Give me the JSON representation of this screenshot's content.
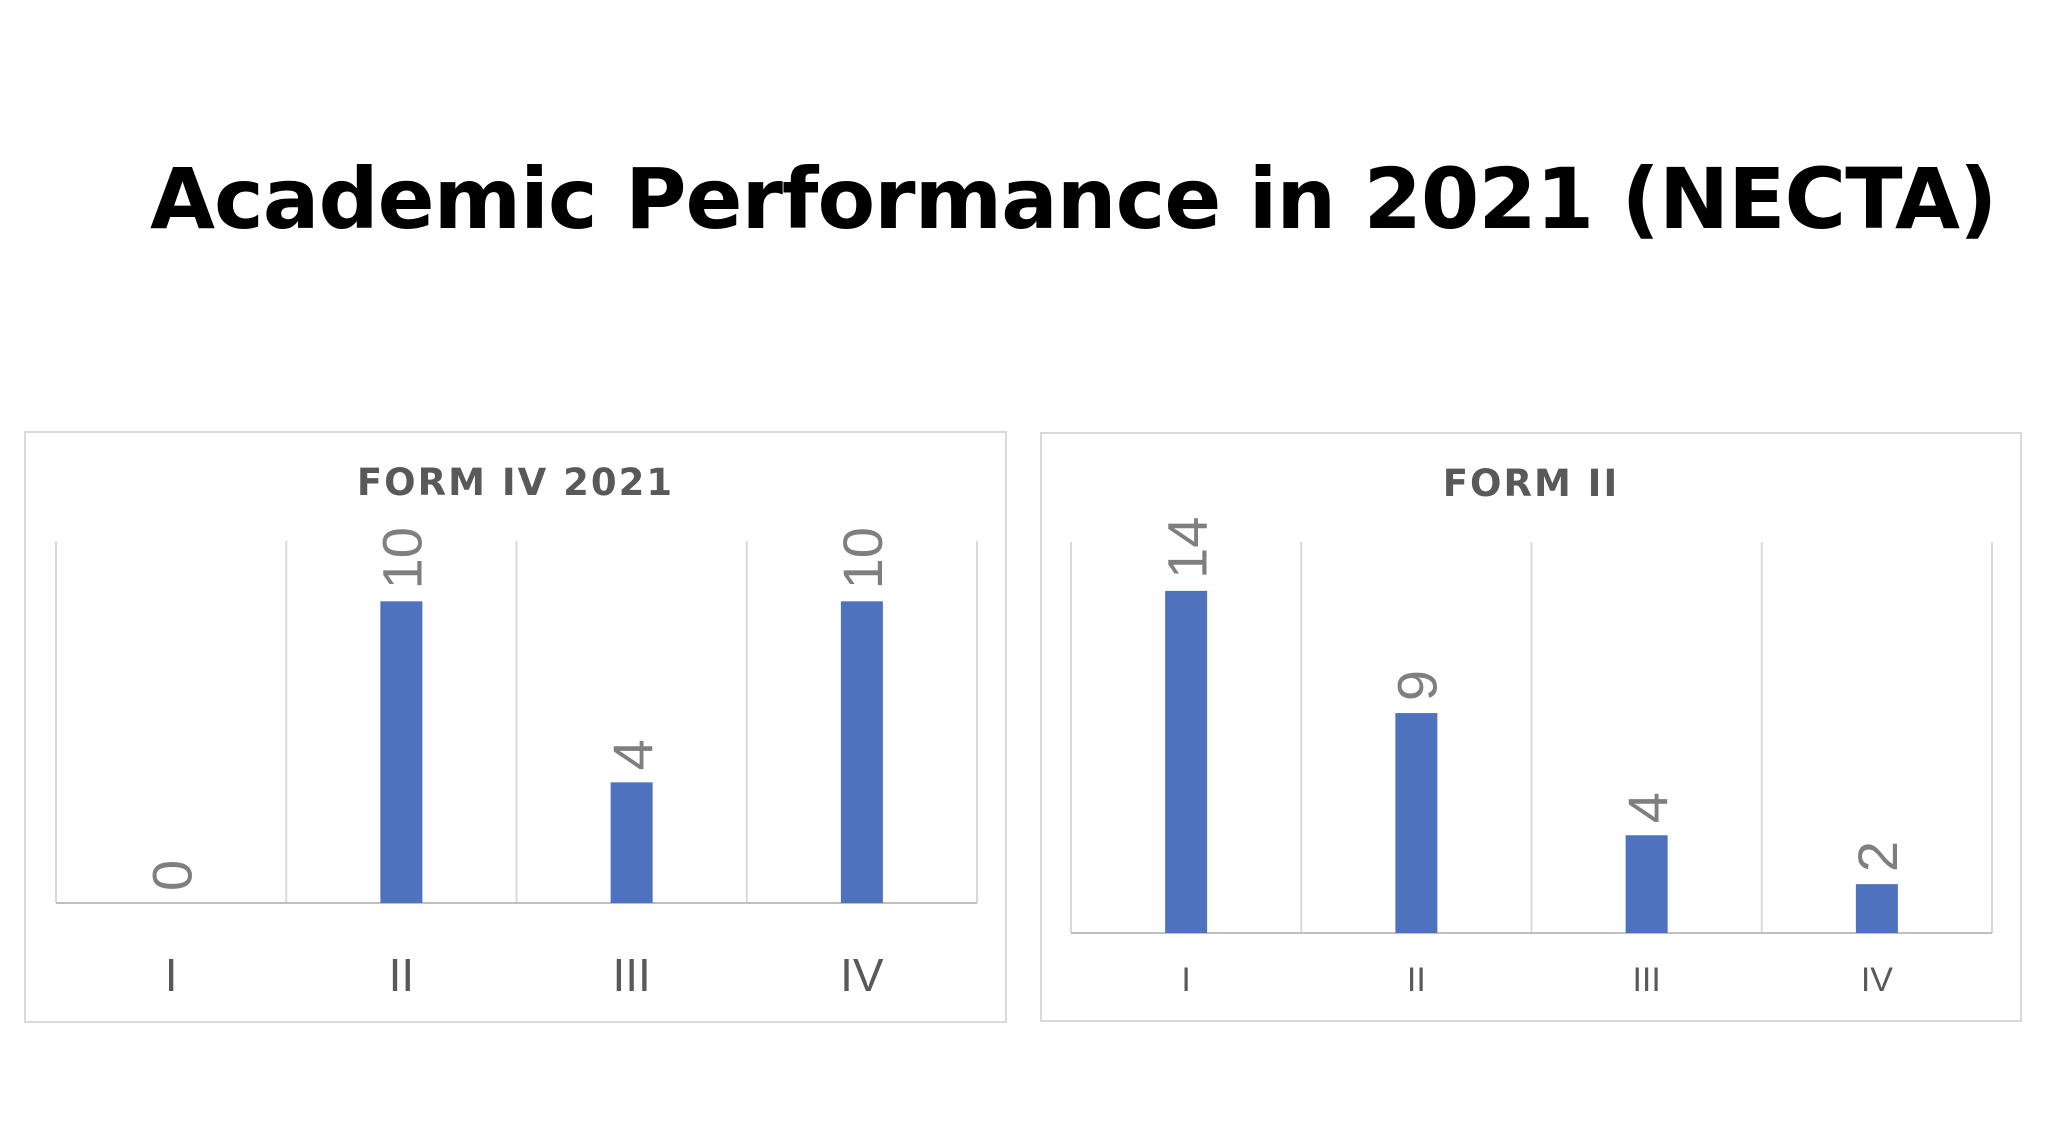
{
  "slide": {
    "title": "Academic Performance in 2021 (NECTA)"
  },
  "colors": {
    "bar": "#4f72be",
    "grid": "#d9d9d9",
    "axis": "#bfbfbf",
    "title_text": "#595959",
    "data_label": "#7f7f7f",
    "category_label": "#595959"
  },
  "chart_data": [
    {
      "type": "bar",
      "title": "FORM IV 2021",
      "categories": [
        "I",
        "II",
        "III",
        "IV"
      ],
      "values": [
        0,
        10,
        4,
        10
      ],
      "xlabel": "",
      "ylabel": "",
      "ylim": [
        0,
        12
      ],
      "data_labels": true,
      "data_label_orientation": "rotated-vertical",
      "grid": "vertical",
      "legend": "none"
    },
    {
      "type": "bar",
      "title": "FORM II",
      "categories": [
        "I",
        "II",
        "III",
        "IV"
      ],
      "values": [
        14,
        9,
        4,
        2
      ],
      "xlabel": "",
      "ylabel": "",
      "ylim": [
        0,
        16
      ],
      "data_labels": true,
      "data_label_orientation": "rotated-vertical",
      "grid": "vertical",
      "legend": "none"
    }
  ]
}
